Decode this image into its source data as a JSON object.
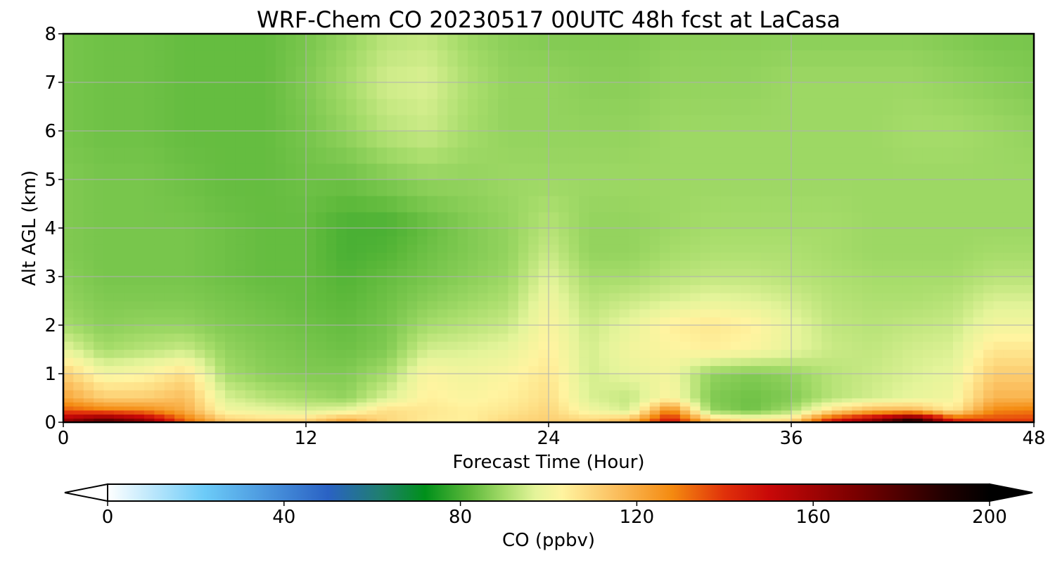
{
  "chart_data": {
    "type": "heatmap",
    "title": "WRF-Chem CO  20230517 00UTC 48h fcst at LaCasa",
    "xlabel": "Forecast Time (Hour)",
    "ylabel": "Alt AGL (km)",
    "xlim": [
      0,
      48
    ],
    "ylim": [
      0,
      8
    ],
    "x_ticks": [
      0,
      12,
      24,
      36,
      48
    ],
    "y_ticks": [
      0,
      1,
      2,
      3,
      4,
      5,
      6,
      7,
      8
    ],
    "grid": true,
    "x_hours": [
      0,
      2,
      4,
      6,
      8,
      10,
      12,
      14,
      16,
      18,
      20,
      22,
      24,
      26,
      28,
      30,
      32,
      34,
      36,
      38,
      40,
      42,
      44,
      46,
      48
    ],
    "z_km": [
      0,
      0.25,
      0.5,
      1,
      1.5,
      2,
      2.5,
      3,
      3.5,
      4,
      5,
      6,
      7,
      8
    ],
    "values": [
      [
        165,
        185,
        170,
        135,
        115,
        112,
        113,
        125,
        110,
        105,
        104,
        110,
        112,
        112,
        120,
        150,
        118,
        110,
        112,
        150,
        170,
        205,
        150,
        140,
        140
      ],
      [
        135,
        130,
        128,
        120,
        100,
        98,
        96,
        98,
        108,
        106,
        104,
        106,
        110,
        100,
        95,
        130,
        88,
        84,
        90,
        108,
        118,
        118,
        105,
        128,
        130
      ],
      [
        122,
        112,
        112,
        116,
        96,
        92,
        90,
        88,
        96,
        104,
        102,
        104,
        108,
        96,
        93,
        103,
        86,
        84,
        86,
        92,
        95,
        98,
        100,
        118,
        118
      ],
      [
        112,
        100,
        102,
        108,
        90,
        87,
        86,
        86,
        90,
        102,
        100,
        102,
        106,
        95,
        98,
        100,
        88,
        86,
        88,
        92,
        94,
        96,
        98,
        112,
        112
      ],
      [
        98,
        90,
        92,
        94,
        88,
        86,
        85,
        84,
        86,
        95,
        96,
        98,
        104,
        95,
        100,
        102,
        104,
        102,
        98,
        94,
        93,
        95,
        96,
        106,
        106
      ],
      [
        90,
        87,
        88,
        88,
        86,
        85,
        84,
        83,
        85,
        90,
        92,
        94,
        102,
        94,
        98,
        104,
        106,
        104,
        98,
        93,
        92,
        93,
        94,
        100,
        100
      ],
      [
        88,
        86,
        86,
        86,
        85,
        84,
        83,
        82,
        84,
        87,
        89,
        91,
        100,
        92,
        94,
        96,
        98,
        97,
        95,
        92,
        91,
        91,
        92,
        96,
        96
      ],
      [
        87,
        85,
        85,
        85,
        84,
        83,
        83,
        81,
        83,
        85,
        87,
        89,
        97,
        90,
        90,
        92,
        93,
        93,
        92,
        91,
        90,
        90,
        90,
        92,
        92
      ],
      [
        86,
        85,
        85,
        85,
        84,
        83,
        83,
        80,
        81,
        84,
        86,
        88,
        94,
        88,
        88,
        90,
        91,
        91,
        91,
        90,
        89,
        89,
        89,
        90,
        90
      ],
      [
        86,
        85,
        85,
        85,
        84,
        83,
        83,
        80,
        80,
        83,
        86,
        88,
        92,
        88,
        88,
        89,
        90,
        90,
        90,
        90,
        89,
        89,
        89,
        89,
        89
      ],
      [
        86,
        85,
        85,
        84,
        83,
        83,
        84,
        84,
        86,
        88,
        88,
        89,
        89,
        89,
        89,
        89,
        89,
        89,
        89,
        89,
        89,
        89,
        89,
        89,
        89
      ],
      [
        85,
        84,
        84,
        83,
        83,
        83,
        85,
        88,
        92,
        94,
        90,
        88,
        88,
        88,
        88,
        89,
        89,
        89,
        89,
        89,
        89,
        90,
        90,
        89,
        88
      ],
      [
        85,
        84,
        84,
        83,
        83,
        83,
        86,
        90,
        95,
        96,
        91,
        88,
        88,
        87,
        87,
        88,
        88,
        88,
        89,
        89,
        89,
        89,
        88,
        87,
        86
      ],
      [
        85,
        84,
        84,
        83,
        83,
        83,
        85,
        88,
        92,
        93,
        89,
        87,
        86,
        86,
        86,
        87,
        87,
        87,
        87,
        87,
        87,
        87,
        86,
        85,
        85
      ]
    ],
    "colorbar": {
      "label": "CO  (ppbv)",
      "min": 0,
      "max": 200,
      "ticks": [
        0,
        40,
        80,
        120,
        160,
        200
      ],
      "extend": "both",
      "stops": [
        {
          "v": 0,
          "c": "#ffffff"
        },
        {
          "v": 22,
          "c": "#6ccbf8"
        },
        {
          "v": 50,
          "c": "#2a62c4"
        },
        {
          "v": 62,
          "c": "#1f7f6e"
        },
        {
          "v": 72,
          "c": "#00901a"
        },
        {
          "v": 82,
          "c": "#5cb83a"
        },
        {
          "v": 90,
          "c": "#a6dc6a"
        },
        {
          "v": 97,
          "c": "#e4f49a"
        },
        {
          "v": 103,
          "c": "#fff4a0"
        },
        {
          "v": 115,
          "c": "#fbc060"
        },
        {
          "v": 128,
          "c": "#f48a10"
        },
        {
          "v": 140,
          "c": "#e0300a"
        },
        {
          "v": 150,
          "c": "#c80808"
        },
        {
          "v": 170,
          "c": "#780000"
        },
        {
          "v": 190,
          "c": "#200000"
        },
        {
          "v": 200,
          "c": "#000000"
        }
      ]
    }
  }
}
